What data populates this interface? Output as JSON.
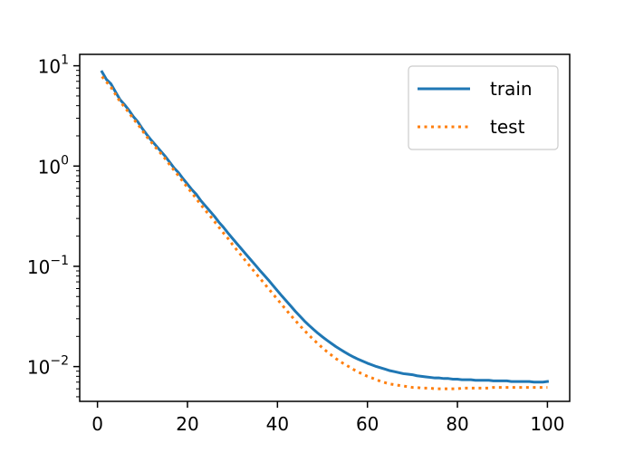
{
  "chart_data": {
    "type": "line",
    "yscale": "log",
    "xlim": [
      -3.95,
      104.95
    ],
    "ylim": [
      0.0045,
      13
    ],
    "grid": false,
    "legend_position": "top-right",
    "x_ticks": [
      {
        "value": 0,
        "label": "0"
      },
      {
        "value": 20,
        "label": "20"
      },
      {
        "value": 40,
        "label": "40"
      },
      {
        "value": 60,
        "label": "60"
      },
      {
        "value": 80,
        "label": "80"
      },
      {
        "value": 100,
        "label": "100"
      }
    ],
    "y_ticks": [
      {
        "value": 10,
        "base": "10",
        "exp": "1"
      },
      {
        "value": 1,
        "base": "10",
        "exp": "0"
      },
      {
        "value": 0.1,
        "base": "10",
        "exp": "−1"
      },
      {
        "value": 0.01,
        "base": "10",
        "exp": "−2"
      }
    ],
    "x": [
      1,
      2,
      3,
      4,
      5,
      6,
      7,
      8,
      9,
      10,
      11,
      12,
      13,
      14,
      15,
      16,
      17,
      18,
      19,
      20,
      21,
      22,
      23,
      24,
      25,
      26,
      27,
      28,
      29,
      30,
      31,
      32,
      33,
      34,
      35,
      36,
      37,
      38,
      39,
      40,
      41,
      42,
      43,
      44,
      45,
      46,
      47,
      48,
      49,
      50,
      51,
      52,
      53,
      54,
      55,
      56,
      57,
      58,
      59,
      60,
      61,
      62,
      63,
      64,
      65,
      66,
      67,
      68,
      69,
      70,
      71,
      72,
      73,
      74,
      75,
      76,
      77,
      78,
      79,
      80,
      81,
      82,
      83,
      84,
      85,
      86,
      87,
      88,
      89,
      90,
      91,
      92,
      93,
      94,
      95,
      96,
      97,
      98,
      99,
      100
    ],
    "series": [
      {
        "name": "train",
        "color": "#1f77b4",
        "style": "solid",
        "values": [
          8.7,
          7.3,
          6.6,
          5.5,
          4.6,
          4.1,
          3.6,
          3.1,
          2.75,
          2.35,
          2.05,
          1.8,
          1.6,
          1.42,
          1.26,
          1.1,
          0.96,
          0.86,
          0.75,
          0.66,
          0.58,
          0.52,
          0.45,
          0.4,
          0.355,
          0.315,
          0.275,
          0.245,
          0.215,
          0.19,
          0.168,
          0.149,
          0.132,
          0.117,
          0.104,
          0.092,
          0.082,
          0.073,
          0.0645,
          0.057,
          0.0505,
          0.045,
          0.04,
          0.0355,
          0.0318,
          0.0285,
          0.0258,
          0.0235,
          0.0215,
          0.0198,
          0.0183,
          0.017,
          0.0158,
          0.0148,
          0.0139,
          0.0131,
          0.0124,
          0.0118,
          0.0113,
          0.0108,
          0.0104,
          0.01,
          0.0097,
          0.0094,
          0.0091,
          0.0089,
          0.0087,
          0.0085,
          0.0084,
          0.0083,
          0.0081,
          0.008,
          0.0079,
          0.0078,
          0.0077,
          0.0077,
          0.0076,
          0.0076,
          0.0075,
          0.0075,
          0.0074,
          0.0074,
          0.0074,
          0.0073,
          0.0073,
          0.0073,
          0.0073,
          0.0072,
          0.0072,
          0.0072,
          0.0072,
          0.0071,
          0.0071,
          0.0071,
          0.0071,
          0.0071,
          0.007,
          0.007,
          0.007,
          0.0071
        ]
      },
      {
        "name": "test",
        "color": "#ff7f0e",
        "style": "dotted",
        "values": [
          7.8,
          6.9,
          6.1,
          5.2,
          4.4,
          3.9,
          3.4,
          2.95,
          2.6,
          2.25,
          1.95,
          1.72,
          1.52,
          1.35,
          1.19,
          1.04,
          0.91,
          0.8,
          0.7,
          0.61,
          0.54,
          0.47,
          0.41,
          0.36,
          0.32,
          0.28,
          0.245,
          0.215,
          0.19,
          0.165,
          0.145,
          0.128,
          0.112,
          0.099,
          0.087,
          0.077,
          0.068,
          0.06,
          0.053,
          0.0468,
          0.0413,
          0.0365,
          0.0323,
          0.0287,
          0.0256,
          0.0229,
          0.0206,
          0.0186,
          0.0169,
          0.0154,
          0.0141,
          0.013,
          0.012,
          0.0112,
          0.0105,
          0.0099,
          0.0093,
          0.0088,
          0.0084,
          0.008,
          0.0077,
          0.0074,
          0.0071,
          0.0069,
          0.0067,
          0.0066,
          0.0065,
          0.0064,
          0.0063,
          0.0062,
          0.0062,
          0.0061,
          0.0061,
          0.0061,
          0.006,
          0.006,
          0.006,
          0.006,
          0.006,
          0.006,
          0.0061,
          0.0061,
          0.0061,
          0.0061,
          0.0061,
          0.0061,
          0.0061,
          0.0062,
          0.0062,
          0.0062,
          0.0062,
          0.0062,
          0.0062,
          0.0062,
          0.0062,
          0.0062,
          0.0062,
          0.0062,
          0.0062,
          0.0062
        ]
      }
    ]
  }
}
